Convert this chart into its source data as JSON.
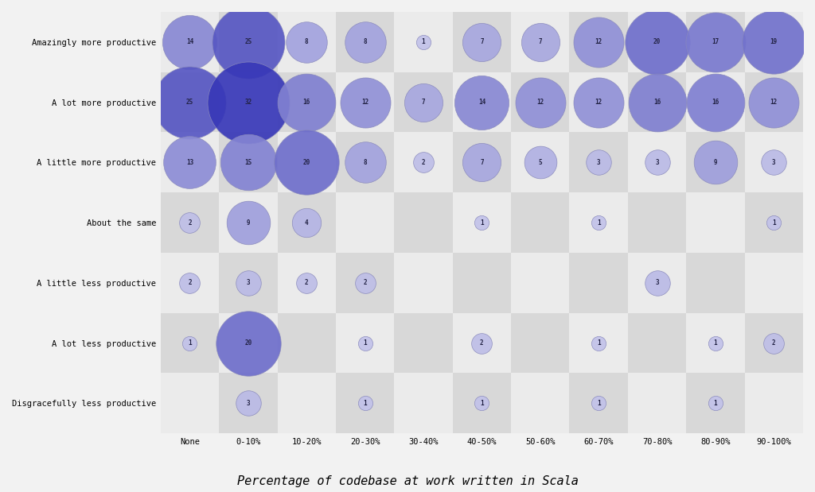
{
  "x_labels": [
    "None",
    "0-10%",
    "10-20%",
    "20-30%",
    "30-40%",
    "40-50%",
    "50-60%",
    "60-70%",
    "70-80%",
    "80-90%",
    "90-100%"
  ],
  "y_labels": [
    "Amazingly more productive",
    "A lot more productive",
    "A little more productive",
    "About the same",
    "A little less productive",
    "A lot less productive",
    "Disgracefully less productive"
  ],
  "bubbles": [
    {
      "xi": 0,
      "yi": 0,
      "v": 14
    },
    {
      "xi": 1,
      "yi": 0,
      "v": 25
    },
    {
      "xi": 2,
      "yi": 0,
      "v": 8
    },
    {
      "xi": 3,
      "yi": 0,
      "v": 8
    },
    {
      "xi": 4,
      "yi": 0,
      "v": 1
    },
    {
      "xi": 5,
      "yi": 0,
      "v": 7
    },
    {
      "xi": 6,
      "yi": 0,
      "v": 7
    },
    {
      "xi": 7,
      "yi": 0,
      "v": 12
    },
    {
      "xi": 8,
      "yi": 0,
      "v": 20
    },
    {
      "xi": 9,
      "yi": 0,
      "v": 17
    },
    {
      "xi": 10,
      "yi": 0,
      "v": 19
    },
    {
      "xi": 0,
      "yi": 1,
      "v": 25
    },
    {
      "xi": 1,
      "yi": 1,
      "v": 32
    },
    {
      "xi": 2,
      "yi": 1,
      "v": 16
    },
    {
      "xi": 3,
      "yi": 1,
      "v": 12
    },
    {
      "xi": 4,
      "yi": 1,
      "v": 7
    },
    {
      "xi": 5,
      "yi": 1,
      "v": 14
    },
    {
      "xi": 6,
      "yi": 1,
      "v": 12
    },
    {
      "xi": 7,
      "yi": 1,
      "v": 12
    },
    {
      "xi": 8,
      "yi": 1,
      "v": 16
    },
    {
      "xi": 9,
      "yi": 1,
      "v": 16
    },
    {
      "xi": 10,
      "yi": 1,
      "v": 12
    },
    {
      "xi": 0,
      "yi": 2,
      "v": 13
    },
    {
      "xi": 1,
      "yi": 2,
      "v": 15
    },
    {
      "xi": 2,
      "yi": 2,
      "v": 20
    },
    {
      "xi": 3,
      "yi": 2,
      "v": 8
    },
    {
      "xi": 4,
      "yi": 2,
      "v": 2
    },
    {
      "xi": 5,
      "yi": 2,
      "v": 7
    },
    {
      "xi": 6,
      "yi": 2,
      "v": 5
    },
    {
      "xi": 7,
      "yi": 2,
      "v": 3
    },
    {
      "xi": 8,
      "yi": 2,
      "v": 3
    },
    {
      "xi": 9,
      "yi": 2,
      "v": 9
    },
    {
      "xi": 10,
      "yi": 2,
      "v": 3
    },
    {
      "xi": 0,
      "yi": 3,
      "v": 2
    },
    {
      "xi": 1,
      "yi": 3,
      "v": 9
    },
    {
      "xi": 2,
      "yi": 3,
      "v": 4
    },
    {
      "xi": 5,
      "yi": 3,
      "v": 1
    },
    {
      "xi": 7,
      "yi": 3,
      "v": 1
    },
    {
      "xi": 10,
      "yi": 3,
      "v": 1
    },
    {
      "xi": 0,
      "yi": 4,
      "v": 2
    },
    {
      "xi": 1,
      "yi": 4,
      "v": 3
    },
    {
      "xi": 2,
      "yi": 4,
      "v": 2
    },
    {
      "xi": 3,
      "yi": 4,
      "v": 2
    },
    {
      "xi": 8,
      "yi": 4,
      "v": 3
    },
    {
      "xi": 0,
      "yi": 5,
      "v": 1
    },
    {
      "xi": 1,
      "yi": 5,
      "v": 20
    },
    {
      "xi": 3,
      "yi": 5,
      "v": 1
    },
    {
      "xi": 5,
      "yi": 5,
      "v": 2
    },
    {
      "xi": 7,
      "yi": 5,
      "v": 1
    },
    {
      "xi": 9,
      "yi": 5,
      "v": 1
    },
    {
      "xi": 10,
      "yi": 5,
      "v": 2
    },
    {
      "xi": 1,
      "yi": 6,
      "v": 3
    },
    {
      "xi": 3,
      "yi": 6,
      "v": 1
    },
    {
      "xi": 5,
      "yi": 6,
      "v": 1
    },
    {
      "xi": 7,
      "yi": 6,
      "v": 1
    },
    {
      "xi": 9,
      "yi": 6,
      "v": 1
    }
  ],
  "title": "Percentage of codebase at work written in Scala",
  "max_val": 32,
  "scale_factor": 5500,
  "color_light": [
    0.78,
    0.78,
    0.92
  ],
  "color_dark": [
    0.22,
    0.22,
    0.72
  ],
  "bg_light": "#ebebeb",
  "bg_dark": "#d8d8d8",
  "fig_bg": "#f2f2f2"
}
